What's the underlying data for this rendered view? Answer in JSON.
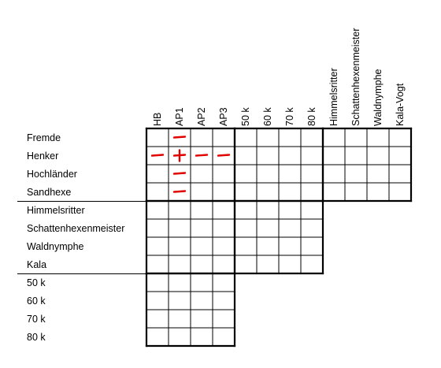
{
  "puzzle": {
    "row_groups": [
      [
        "Fremde",
        "Henker",
        "Hochländer",
        "Sandhexe"
      ],
      [
        "Himmelsritter",
        "Schattenhexenmeister",
        "Waldnymphe",
        "Kala"
      ],
      [
        "50 k",
        "60 k",
        "70 k",
        "80 k"
      ]
    ],
    "col_groups": [
      [
        "HB",
        "AP1",
        "AP2",
        "AP3"
      ],
      [
        "50 k",
        "60 k",
        "70 k",
        "80 k"
      ],
      [
        "Himmelsritter",
        "Schattenhexenmeister",
        "Waldnymphe",
        "Kala-Vogt"
      ]
    ],
    "marks": [
      {
        "row": "Fremde",
        "col": "AP1",
        "symbol": "–"
      },
      {
        "row": "Henker",
        "col": "HB",
        "symbol": "–"
      },
      {
        "row": "Henker",
        "col": "AP1",
        "symbol": "+"
      },
      {
        "row": "Henker",
        "col": "AP2",
        "symbol": "–"
      },
      {
        "row": "Henker",
        "col": "AP3",
        "symbol": "–"
      },
      {
        "row": "Hochländer",
        "col": "AP1",
        "symbol": "–"
      },
      {
        "row": "Sandhexe",
        "col": "AP1",
        "symbol": "–"
      }
    ],
    "mark_color": "#e00000",
    "grid_color": "#000000"
  }
}
